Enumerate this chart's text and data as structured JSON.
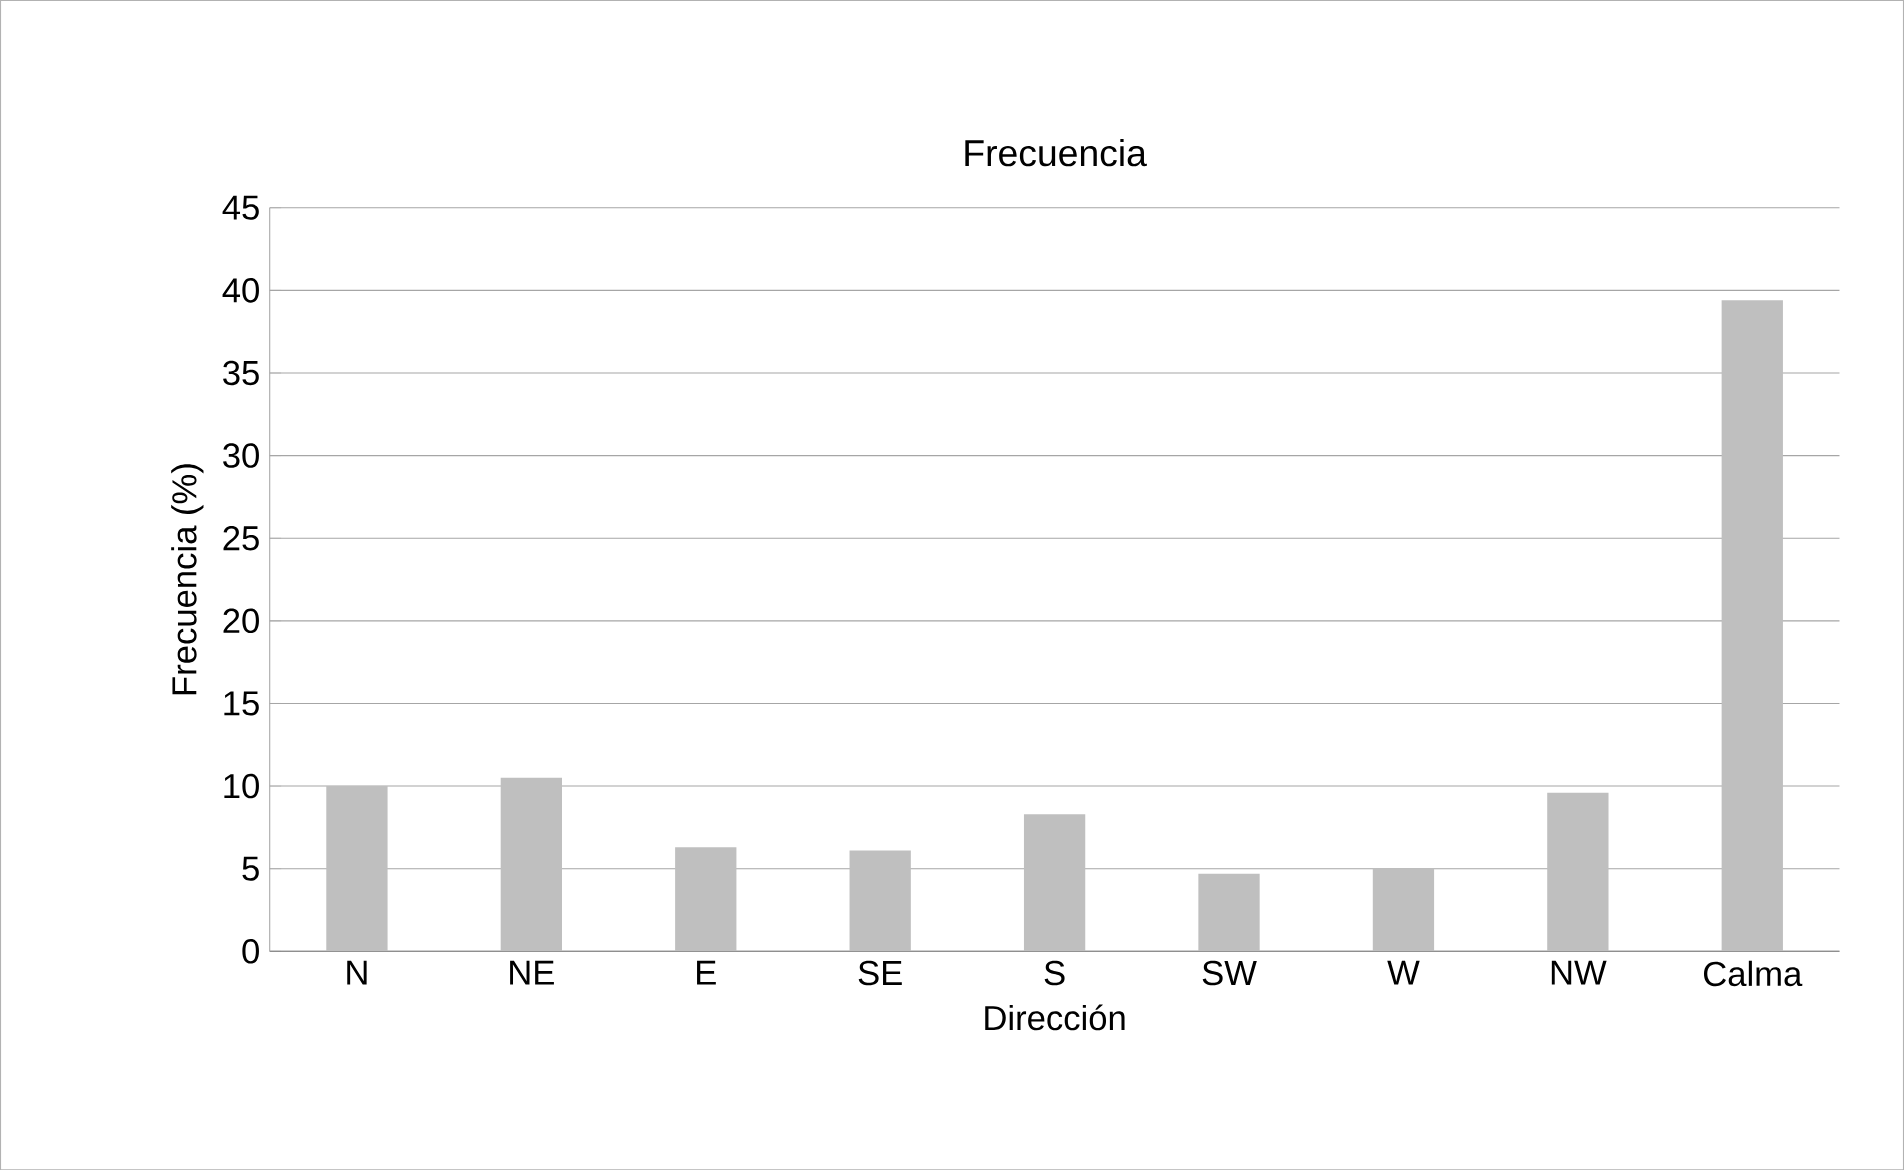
{
  "chart_data": {
    "type": "bar",
    "title": "Frecuencia",
    "xlabel": "Dirección",
    "ylabel": "Frecuencia (%)",
    "categories": [
      "N",
      "NE",
      "E",
      "SE",
      "S",
      "SW",
      "W",
      "NW",
      "Calma"
    ],
    "values": [
      10.0,
      10.5,
      6.3,
      6.1,
      8.3,
      4.7,
      5.0,
      9.6,
      39.4
    ],
    "color": "#bfbfbf",
    "ylim": [
      0,
      45
    ],
    "yticks": [
      0,
      5,
      10,
      15,
      20,
      25,
      30,
      35,
      40,
      45
    ],
    "grid": "y"
  }
}
